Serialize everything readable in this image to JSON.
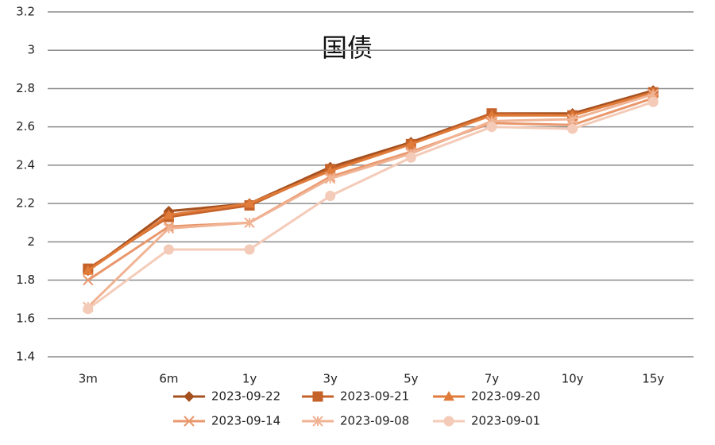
{
  "chart_data": {
    "type": "line",
    "title": "国债",
    "categories": [
      "3m",
      "6m",
      "1y",
      "3y",
      "5y",
      "7y",
      "10y",
      "15y"
    ],
    "series": [
      {
        "name": "2023-09-22",
        "color": "#a4501f",
        "marker": "diamond",
        "values": [
          1.85,
          2.16,
          2.2,
          2.39,
          2.52,
          2.67,
          2.67,
          2.79
        ]
      },
      {
        "name": "2023-09-21",
        "color": "#c4622a",
        "marker": "square",
        "values": [
          1.86,
          2.13,
          2.19,
          2.38,
          2.51,
          2.67,
          2.66,
          2.78
        ]
      },
      {
        "name": "2023-09-20",
        "color": "#e07b39",
        "marker": "triangle",
        "values": [
          1.85,
          2.14,
          2.2,
          2.37,
          2.51,
          2.66,
          2.66,
          2.78
        ]
      },
      {
        "name": "2023-09-14",
        "color": "#e9976c",
        "marker": "x",
        "values": [
          1.8,
          2.08,
          2.1,
          2.34,
          2.47,
          2.62,
          2.61,
          2.75
        ]
      },
      {
        "name": "2023-09-08",
        "color": "#f0b394",
        "marker": "star",
        "values": [
          1.66,
          2.07,
          2.1,
          2.33,
          2.46,
          2.63,
          2.64,
          2.77
        ]
      },
      {
        "name": "2023-09-01",
        "color": "#f4cbb8",
        "marker": "circle",
        "values": [
          1.65,
          1.96,
          1.96,
          2.24,
          2.44,
          2.6,
          2.59,
          2.73
        ]
      }
    ],
    "ylim": [
      1.4,
      3.2
    ],
    "yticks": [
      1.4,
      1.6,
      1.8,
      2,
      2.2,
      2.4,
      2.6,
      2.8,
      3,
      3.2
    ],
    "grid": true,
    "legend": "bottom"
  }
}
